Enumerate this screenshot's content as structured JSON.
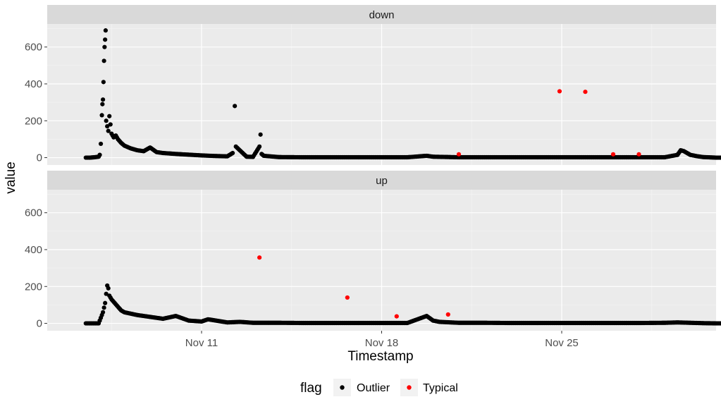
{
  "chart_data": {
    "type": "scatter",
    "xlabel": "Timestamp",
    "ylabel": "value",
    "x_ticks": [
      "Nov 11",
      "Nov 18",
      "Nov 25"
    ],
    "y_ticks": [
      0,
      200,
      400,
      600
    ],
    "ylim": [
      -40,
      725
    ],
    "xlim": [
      "2018-11-05",
      "2018-12-01"
    ],
    "grid": true,
    "legend": {
      "title": "flag",
      "position": "bottom",
      "entries": [
        {
          "label": "Outlier",
          "color": "#000000"
        },
        {
          "label": "Typical",
          "color": "#ff0000"
        }
      ]
    },
    "panels": [
      {
        "strip": "down",
        "series": [
          {
            "name": "Outlier",
            "color": "#000000",
            "points": [
              [
                "2018-11-06T12:00",
                0
              ],
              [
                "2018-11-06T16:00",
                0
              ],
              [
                "2018-11-06T20:00",
                2
              ],
              [
                "2018-11-07T00:00",
                5
              ],
              [
                "2018-11-07T01:00",
                15
              ],
              [
                "2018-11-07T02:00",
                75
              ],
              [
                "2018-11-07T03:00",
                230
              ],
              [
                "2018-11-07T03:30",
                290
              ],
              [
                "2018-11-07T04:00",
                315
              ],
              [
                "2018-11-07T04:30",
                410
              ],
              [
                "2018-11-07T05:00",
                525
              ],
              [
                "2018-11-07T05:30",
                600
              ],
              [
                "2018-11-07T06:00",
                640
              ],
              [
                "2018-11-07T06:30",
                690
              ],
              [
                "2018-11-07T07:00",
                200
              ],
              [
                "2018-11-07T08:00",
                170
              ],
              [
                "2018-11-07T09:00",
                145
              ],
              [
                "2018-11-07T10:00",
                225
              ],
              [
                "2018-11-07T11:00",
                180
              ],
              [
                "2018-11-07T12:00",
                130
              ],
              [
                "2018-11-07T14:00",
                110
              ],
              [
                "2018-11-07T16:00",
                120
              ],
              [
                "2018-11-07T18:00",
                100
              ],
              [
                "2018-11-07T21:00",
                80
              ],
              [
                "2018-11-08T00:00",
                65
              ],
              [
                "2018-11-08T06:00",
                50
              ],
              [
                "2018-11-08T12:00",
                40
              ],
              [
                "2018-11-08T18:00",
                35
              ],
              [
                "2018-11-09T00:00",
                55
              ],
              [
                "2018-11-09T06:00",
                30
              ],
              [
                "2018-11-09T12:00",
                25
              ],
              [
                "2018-11-10T00:00",
                20
              ],
              [
                "2018-11-10T12:00",
                16
              ],
              [
                "2018-11-11T00:00",
                12
              ],
              [
                "2018-11-11T12:00",
                9
              ],
              [
                "2018-11-12T00:00",
                7
              ],
              [
                "2018-11-12T05:00",
                25
              ],
              [
                "2018-11-12T07:00",
                280
              ],
              [
                "2018-11-12T08:00",
                60
              ],
              [
                "2018-11-12T18:00",
                5
              ],
              [
                "2018-11-13T00:00",
                4
              ],
              [
                "2018-11-13T06:00",
                60
              ],
              [
                "2018-11-13T07:00",
                125
              ],
              [
                "2018-11-13T08:00",
                20
              ],
              [
                "2018-11-13T10:00",
                10
              ],
              [
                "2018-11-14T00:00",
                3
              ],
              [
                "2018-11-15T00:00",
                2
              ],
              [
                "2018-11-16T00:00",
                2
              ],
              [
                "2018-11-17T00:00",
                2
              ],
              [
                "2018-11-18T00:00",
                2
              ],
              [
                "2018-11-19T00:00",
                2
              ],
              [
                "2018-11-19T18:00",
                10
              ],
              [
                "2018-11-20T00:00",
                5
              ],
              [
                "2018-11-21T00:00",
                2
              ],
              [
                "2018-11-22T00:00",
                2
              ],
              [
                "2018-11-23T00:00",
                2
              ],
              [
                "2018-11-24T00:00",
                2
              ],
              [
                "2018-11-25T00:00",
                2
              ],
              [
                "2018-11-26T00:00",
                2
              ],
              [
                "2018-11-27T00:00",
                2
              ],
              [
                "2018-11-28T00:00",
                2
              ],
              [
                "2018-11-29T00:00",
                2
              ],
              [
                "2018-11-29T12:00",
                15
              ],
              [
                "2018-11-29T15:00",
                40
              ],
              [
                "2018-11-29T18:00",
                35
              ],
              [
                "2018-11-29T21:00",
                25
              ],
              [
                "2018-11-30T00:00",
                15
              ],
              [
                "2018-11-30T06:00",
                8
              ],
              [
                "2018-11-30T12:00",
                3
              ],
              [
                "2018-12-01T00:00",
                0
              ],
              [
                "2018-12-01T12:00",
                0
              ]
            ]
          },
          {
            "name": "Typical",
            "color": "#ff0000",
            "points": [
              [
                "2018-11-21T00:00",
                18
              ],
              [
                "2018-11-24T22:00",
                360
              ],
              [
                "2018-11-25T22:00",
                357
              ],
              [
                "2018-11-27T00:00",
                18
              ],
              [
                "2018-11-28T00:00",
                18
              ]
            ]
          }
        ]
      },
      {
        "strip": "up",
        "series": [
          {
            "name": "Outlier",
            "color": "#000000",
            "points": [
              [
                "2018-11-06T12:00",
                0
              ],
              [
                "2018-11-06T18:00",
                0
              ],
              [
                "2018-11-07T00:00",
                0
              ],
              [
                "2018-11-07T04:00",
                60
              ],
              [
                "2018-11-07T06:00",
                110
              ],
              [
                "2018-11-07T07:00",
                160
              ],
              [
                "2018-11-07T08:00",
                205
              ],
              [
                "2018-11-07T09:00",
                190
              ],
              [
                "2018-11-07T10:00",
                150
              ],
              [
                "2018-11-07T12:00",
                130
              ],
              [
                "2018-11-07T15:00",
                110
              ],
              [
                "2018-11-07T18:00",
                90
              ],
              [
                "2018-11-07T21:00",
                70
              ],
              [
                "2018-11-08T00:00",
                60
              ],
              [
                "2018-11-08T12:00",
                45
              ],
              [
                "2018-11-09T00:00",
                35
              ],
              [
                "2018-11-09T12:00",
                25
              ],
              [
                "2018-11-10T00:00",
                40
              ],
              [
                "2018-11-10T12:00",
                15
              ],
              [
                "2018-11-11T00:00",
                10
              ],
              [
                "2018-11-11T06:00",
                22
              ],
              [
                "2018-11-12T00:00",
                5
              ],
              [
                "2018-11-12T12:00",
                8
              ],
              [
                "2018-11-13T00:00",
                3
              ],
              [
                "2018-11-14T00:00",
                3
              ],
              [
                "2018-11-15T00:00",
                2
              ],
              [
                "2018-11-16T00:00",
                2
              ],
              [
                "2018-11-17T00:00",
                2
              ],
              [
                "2018-11-18T00:00",
                2
              ],
              [
                "2018-11-19T00:00",
                2
              ],
              [
                "2018-11-19T18:00",
                40
              ],
              [
                "2018-11-20T00:00",
                15
              ],
              [
                "2018-11-20T06:00",
                8
              ],
              [
                "2018-11-21T00:00",
                3
              ],
              [
                "2018-11-22T00:00",
                3
              ],
              [
                "2018-11-23T00:00",
                2
              ],
              [
                "2018-11-24T00:00",
                2
              ],
              [
                "2018-11-25T00:00",
                2
              ],
              [
                "2018-11-26T00:00",
                2
              ],
              [
                "2018-11-27T00:00",
                2
              ],
              [
                "2018-11-28T00:00",
                2
              ],
              [
                "2018-11-29T00:00",
                3
              ],
              [
                "2018-11-29T12:00",
                5
              ],
              [
                "2018-11-30T00:00",
                3
              ],
              [
                "2018-11-30T12:00",
                1
              ],
              [
                "2018-12-01T00:00",
                0
              ],
              [
                "2018-12-01T12:00",
                0
              ]
            ]
          },
          {
            "name": "Typical",
            "color": "#ff0000",
            "points": [
              [
                "2018-11-13T06:00",
                357
              ],
              [
                "2018-11-16T16:00",
                140
              ],
              [
                "2018-11-18T14:00",
                38
              ],
              [
                "2018-11-20T14:00",
                48
              ]
            ]
          }
        ]
      }
    ]
  }
}
